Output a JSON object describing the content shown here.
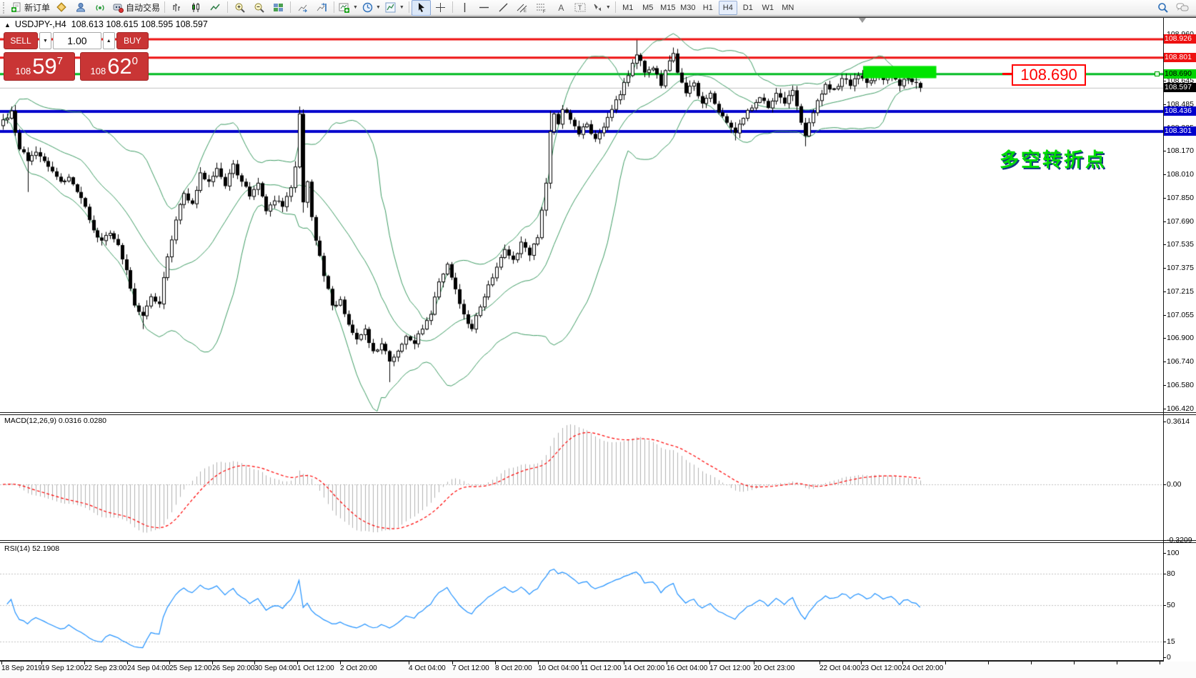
{
  "toolbar": {
    "new_order": "新订单",
    "auto_trading": "自动交易",
    "timeframes": [
      {
        "label": "M1",
        "active": false
      },
      {
        "label": "M5",
        "active": false
      },
      {
        "label": "M15",
        "active": false
      },
      {
        "label": "M30",
        "active": false
      },
      {
        "label": "H1",
        "active": false
      },
      {
        "label": "H4",
        "active": true
      },
      {
        "label": "D1",
        "active": false
      },
      {
        "label": "W1",
        "active": false
      },
      {
        "label": "MN",
        "active": false
      }
    ]
  },
  "title": {
    "arrow": "▲",
    "symbol": "USDJPY-,H4",
    "ohlc": "108.613 108.615 108.595 108.597"
  },
  "trade": {
    "sell": "SELL",
    "buy": "BUY",
    "volume": "1.00",
    "bid": {
      "prefix": "108",
      "big": "59",
      "sup": "7"
    },
    "ask": {
      "prefix": "108",
      "big": "62",
      "sup": "0"
    }
  },
  "price_axis": {
    "ticks": [
      "108.960",
      "108.805",
      "108.645",
      "108.485",
      "108.325",
      "108.170",
      "108.010",
      "107.850",
      "107.690",
      "107.535",
      "107.375",
      "107.215",
      "107.055",
      "106.900",
      "106.740",
      "106.580",
      "106.420"
    ]
  },
  "levels": [
    {
      "price": "108.926",
      "line": "#ee1111",
      "badge_bg": "#ee1111",
      "badge_fg": "#ffffff",
      "thickness": 3
    },
    {
      "price": "108.801",
      "line": "#ee1111",
      "badge_bg": "#ee1111",
      "badge_fg": "#ffffff",
      "thickness": 3
    },
    {
      "price": "108.690",
      "line": "#00bb22",
      "badge_bg": "#00d400",
      "badge_fg": "#000000",
      "thickness": 3
    },
    {
      "price": "108.436",
      "line": "#0000cc",
      "badge_bg": "#0000cc",
      "badge_fg": "#ffffff",
      "thickness": 4
    },
    {
      "price": "108.301",
      "line": "#0000cc",
      "badge_bg": "#0000cc",
      "badge_fg": "#ffffff",
      "thickness": 4
    }
  ],
  "current_price": {
    "value": "108.597",
    "badge_bg": "#000000",
    "badge_fg": "#ffffff",
    "line_color": "#c0c0c0"
  },
  "macd": {
    "label": "MACD(12,26,9) 0.0316 0.0280",
    "axis": [
      "0.3614",
      "0.00",
      "-0.3209"
    ],
    "hist_color": "#b0b0b0",
    "signal_color": "#ff0000"
  },
  "rsi": {
    "label": "RSI(14) 52.1908",
    "axis": [
      "100",
      "80",
      "50",
      "15",
      "0"
    ],
    "levels": [
      80,
      50,
      15
    ],
    "line_color": "#1e90ff",
    "level_color": "#c0c0c0"
  },
  "time_axis": {
    "labels": [
      "18 Sep 2019",
      "19 Sep 12:00",
      "22 Sep 23:00",
      "24 Sep 04:00",
      "25 Sep 12:00",
      "26 Sep 20:00",
      "30 Sep 04:00",
      "1 Oct 12:00",
      "2 Oct 20:00",
      "4 Oct 04:00",
      "7 Oct 12:00",
      "8 Oct 20:00",
      "10 Oct 04:00",
      "11 Oct 12:00",
      "14 Oct 20:00",
      "16 Oct 04:00",
      "17 Oct 12:00",
      "20 Oct 23:00",
      "22 Oct 04:00",
      "23 Oct 12:00",
      "24 Oct 20:00"
    ]
  },
  "annotations": {
    "target_box": "108.690",
    "cn_text": "多空转折点"
  },
  "colors": {
    "candle_up": "#ffffff",
    "candle_down": "#000000",
    "candle_outline": "#000000",
    "bollinger": "#3d9b63",
    "highlight_rect": "#00e400"
  },
  "chart_data": {
    "type": "candlestick",
    "symbol": "USDJPY",
    "timeframe": "H4",
    "bars": 224,
    "ohlc_current": {
      "open": 108.613,
      "high": 108.615,
      "low": 108.595,
      "close": 108.597
    },
    "bid": 108.597,
    "ask": 108.62,
    "close_waypoints": [
      [
        0,
        108.38
      ],
      [
        2,
        108.44
      ],
      [
        4,
        108.18
      ],
      [
        6,
        108.1
      ],
      [
        8,
        108.16
      ],
      [
        10,
        108.1
      ],
      [
        12,
        108.03
      ],
      [
        14,
        107.96
      ],
      [
        16,
        107.99
      ],
      [
        18,
        107.89
      ],
      [
        20,
        107.79
      ],
      [
        22,
        107.63
      ],
      [
        24,
        107.56
      ],
      [
        26,
        107.61
      ],
      [
        28,
        107.53
      ],
      [
        30,
        107.36
      ],
      [
        32,
        107.12
      ],
      [
        34,
        107.05
      ],
      [
        36,
        107.18
      ],
      [
        38,
        107.13
      ],
      [
        40,
        107.45
      ],
      [
        42,
        107.7
      ],
      [
        44,
        107.88
      ],
      [
        46,
        107.81
      ],
      [
        48,
        108.02
      ],
      [
        50,
        107.96
      ],
      [
        52,
        108.05
      ],
      [
        54,
        107.93
      ],
      [
        56,
        108.08
      ],
      [
        58,
        107.96
      ],
      [
        60,
        107.86
      ],
      [
        62,
        107.95
      ],
      [
        64,
        107.76
      ],
      [
        66,
        107.83
      ],
      [
        68,
        107.79
      ],
      [
        70,
        107.92
      ],
      [
        71,
        108.06
      ],
      [
        72,
        108.42
      ],
      [
        73,
        107.82
      ],
      [
        74,
        107.96
      ],
      [
        75,
        107.72
      ],
      [
        76,
        107.56
      ],
      [
        78,
        107.32
      ],
      [
        80,
        107.12
      ],
      [
        82,
        107.16
      ],
      [
        84,
        106.99
      ],
      [
        86,
        106.89
      ],
      [
        88,
        106.96
      ],
      [
        90,
        106.81
      ],
      [
        92,
        106.86
      ],
      [
        94,
        106.74
      ],
      [
        96,
        106.81
      ],
      [
        98,
        106.91
      ],
      [
        100,
        106.86
      ],
      [
        102,
        106.96
      ],
      [
        104,
        107.06
      ],
      [
        106,
        107.28
      ],
      [
        108,
        107.4
      ],
      [
        110,
        107.23
      ],
      [
        112,
        107.06
      ],
      [
        114,
        106.96
      ],
      [
        116,
        107.11
      ],
      [
        118,
        107.26
      ],
      [
        120,
        107.38
      ],
      [
        122,
        107.5
      ],
      [
        124,
        107.43
      ],
      [
        126,
        107.55
      ],
      [
        128,
        107.46
      ],
      [
        130,
        107.58
      ],
      [
        132,
        107.95
      ],
      [
        133,
        108.3
      ],
      [
        134,
        108.42
      ],
      [
        135,
        108.35
      ],
      [
        136,
        108.45
      ],
      [
        138,
        108.38
      ],
      [
        140,
        108.28
      ],
      [
        142,
        108.35
      ],
      [
        144,
        108.25
      ],
      [
        146,
        108.33
      ],
      [
        148,
        108.45
      ],
      [
        150,
        108.55
      ],
      [
        152,
        108.68
      ],
      [
        154,
        108.82
      ],
      [
        155,
        108.78
      ],
      [
        156,
        108.7
      ],
      [
        158,
        108.73
      ],
      [
        160,
        108.61
      ],
      [
        162,
        108.78
      ],
      [
        163,
        108.83
      ],
      [
        164,
        108.7
      ],
      [
        166,
        108.56
      ],
      [
        168,
        108.63
      ],
      [
        170,
        108.49
      ],
      [
        172,
        108.56
      ],
      [
        174,
        108.43
      ],
      [
        176,
        108.36
      ],
      [
        178,
        108.29
      ],
      [
        180,
        108.39
      ],
      [
        182,
        108.46
      ],
      [
        184,
        108.53
      ],
      [
        186,
        108.46
      ],
      [
        188,
        108.56
      ],
      [
        190,
        108.49
      ],
      [
        192,
        108.58
      ],
      [
        194,
        108.36
      ],
      [
        195,
        108.27
      ],
      [
        196,
        108.36
      ],
      [
        198,
        108.51
      ],
      [
        200,
        108.62
      ],
      [
        202,
        108.59
      ],
      [
        204,
        108.66
      ],
      [
        206,
        108.61
      ],
      [
        208,
        108.68
      ],
      [
        210,
        108.63
      ],
      [
        212,
        108.7
      ],
      [
        214,
        108.65
      ],
      [
        216,
        108.68
      ],
      [
        218,
        108.61
      ],
      [
        220,
        108.66
      ],
      [
        222,
        108.63
      ],
      [
        223,
        108.597
      ]
    ],
    "wick_overrides": {
      "2": {
        "h": 108.47
      },
      "6": {
        "l": 107.89
      },
      "34": {
        "l": 106.96
      },
      "72": {
        "h": 108.47
      },
      "73": {
        "l": 107.75
      },
      "94": {
        "l": 106.6
      },
      "133": {
        "h": 108.44
      },
      "154": {
        "h": 108.92
      },
      "163": {
        "h": 108.87
      },
      "178": {
        "l": 108.24
      },
      "195": {
        "l": 108.2
      }
    },
    "highlight": {
      "bar_start": 209.5,
      "bar_end": 227.3,
      "price_top": 108.745,
      "price_bottom": 108.662
    },
    "indicators": [
      {
        "name": "Bollinger Bands",
        "period": 20,
        "deviation": 2
      },
      {
        "name": "MACD",
        "fast": 12,
        "slow": 26,
        "signal": 9,
        "values": [
          0.0316,
          0.028
        ]
      },
      {
        "name": "RSI",
        "period": 14,
        "value": 52.1908
      }
    ]
  }
}
